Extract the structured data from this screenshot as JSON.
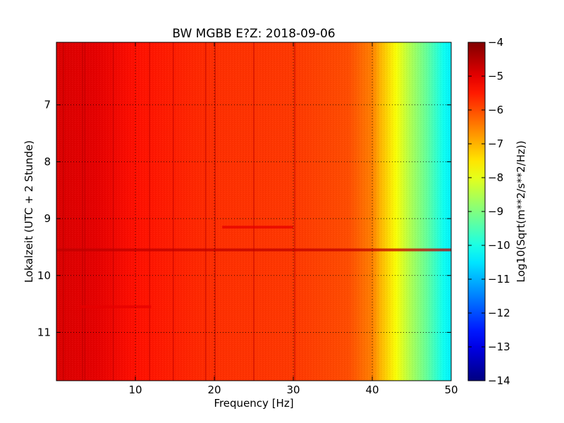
{
  "chart_data": {
    "type": "heatmap",
    "title": "BW MGBB E?Z: 2018-09-06",
    "xlabel": "Frequency [Hz]",
    "ylabel": "Lokalzeit (UTC + 2 Stunde)",
    "xlim": [
      0,
      50
    ],
    "ylim": [
      5.9,
      11.85
    ],
    "y_inverted": true,
    "x_ticks": [
      10,
      20,
      30,
      40,
      50
    ],
    "y_ticks": [
      7,
      8,
      9,
      10,
      11
    ],
    "grid": true,
    "colormap": "jet",
    "colorbar": {
      "label": "Log10(Sqrt(m**2/s**2/Hz))",
      "range": [
        -14,
        -4
      ],
      "ticks": [
        -4,
        -5,
        -6,
        -7,
        -8,
        -9,
        -10,
        -11,
        -12,
        -13,
        -14
      ]
    },
    "background_profile": {
      "freq_hz": [
        0,
        5,
        10,
        20,
        30,
        37,
        40,
        41,
        43,
        45,
        47,
        49,
        50
      ],
      "log_level": [
        -4.9,
        -5.0,
        -5.4,
        -5.7,
        -5.8,
        -6.0,
        -6.5,
        -7.0,
        -7.8,
        -8.6,
        -9.3,
        -10.1,
        -10.4
      ]
    },
    "vertical_lines_hz": [
      0.9,
      3.3,
      3.6,
      7.2,
      11.8,
      14.8,
      18.9,
      20.1,
      25.0,
      30.2
    ],
    "horizontal_events": [
      {
        "time": 9.55,
        "f_start": 0,
        "f_end": 50,
        "log_level": -4.6
      },
      {
        "time": 9.15,
        "f_start": 21,
        "f_end": 30,
        "log_level": -5.0
      },
      {
        "time": 10.55,
        "f_start": 3,
        "f_end": 12,
        "log_level": -5.0
      }
    ]
  }
}
